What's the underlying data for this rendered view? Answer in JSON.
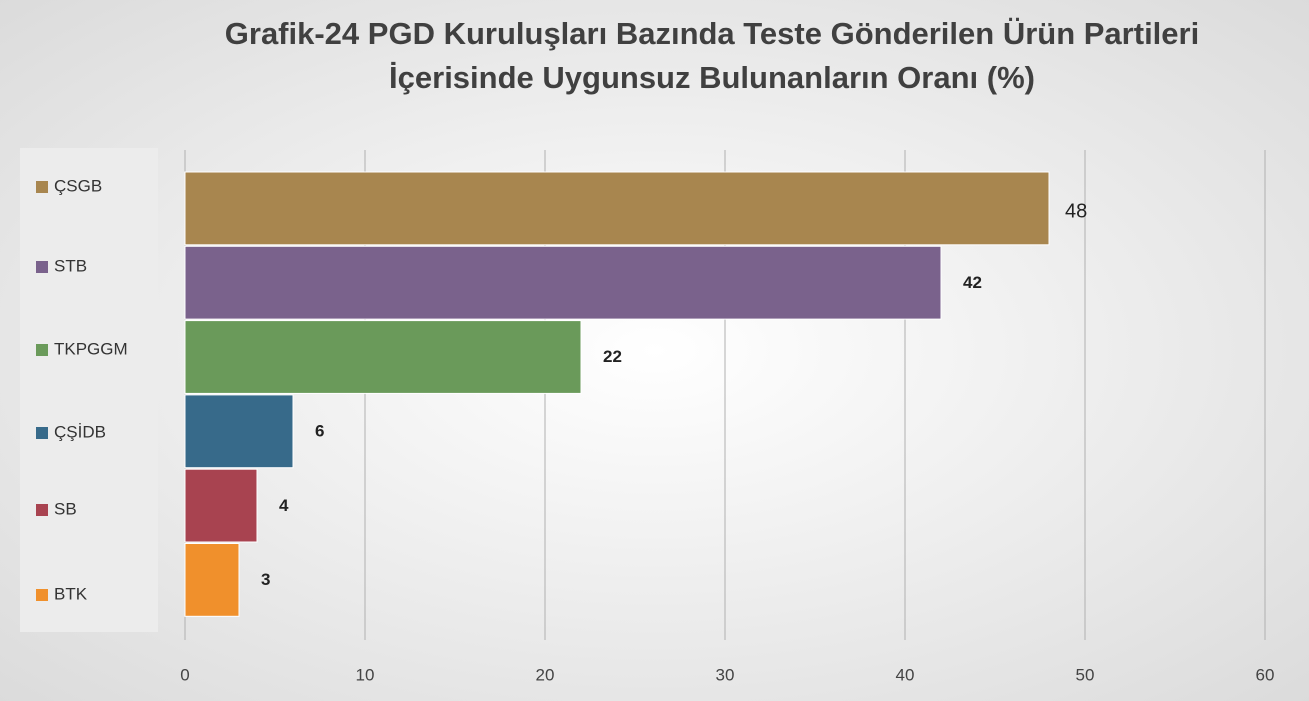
{
  "chart_data": {
    "type": "bar",
    "title": [
      "Grafik-24 PGD Kuruluşları Bazında Teste Gönderilen Ürün Partileri",
      "İçerisinde Uygunsuz Bulunanların Oranı (%)"
    ],
    "categories": [
      "ÇSGB",
      "STB",
      "TKPGGM",
      "ÇŞİDB",
      "SB",
      "BTK"
    ],
    "values": [
      48,
      42,
      22,
      6,
      4,
      3
    ],
    "colors": [
      "#a8864f",
      "#7a628c",
      "#6a9a5a",
      "#376a8a",
      "#a84350",
      "#f0902c"
    ],
    "xlim": [
      0,
      60
    ],
    "xticks": [
      0,
      10,
      20,
      30,
      40,
      50,
      60
    ],
    "orientation": "horizontal",
    "grid": true,
    "legend": "left"
  }
}
